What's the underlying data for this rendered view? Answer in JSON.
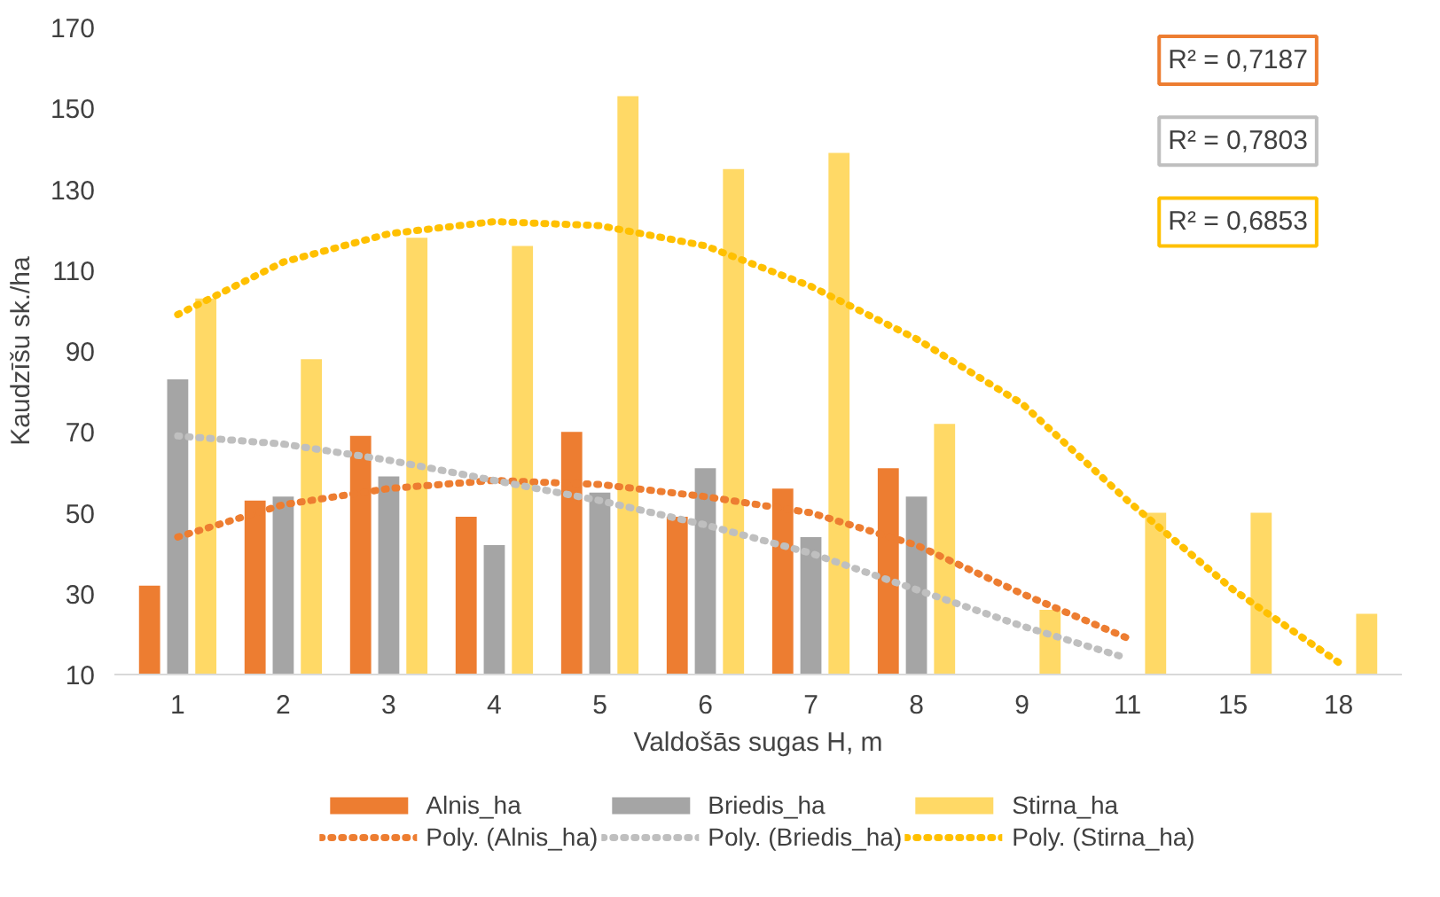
{
  "chart_data": {
    "type": "bar",
    "xlabel": "Valdošās sugas H, m",
    "ylabel": "Kaudzīšu sk./ha",
    "categories": [
      "1",
      "2",
      "3",
      "4",
      "5",
      "6",
      "7",
      "8",
      "9",
      "11",
      "15",
      "18"
    ],
    "ylim": [
      10,
      170
    ],
    "yticks": [
      10,
      30,
      50,
      70,
      90,
      110,
      130,
      150,
      170
    ],
    "grid": false,
    "legend": "bottom",
    "series": [
      {
        "name": "Alnis_ha",
        "color": "#ed7d31",
        "values": [
          32,
          53,
          69,
          49,
          70,
          49,
          56,
          61,
          10,
          10,
          10,
          10
        ]
      },
      {
        "name": "Briedis_ha",
        "color": "#a5a5a5",
        "values": [
          83,
          54,
          59,
          42,
          55,
          61,
          44,
          54,
          10,
          10,
          10,
          10
        ]
      },
      {
        "name": "Stirna_ha",
        "color": "#ffd966",
        "values": [
          103,
          88,
          118,
          116,
          153,
          135,
          139,
          72,
          26,
          50,
          50,
          25
        ]
      },
      {
        "name": "Poly. (Alnis_ha)",
        "type": "line",
        "line_style": "dotted",
        "color": "#ed7d31",
        "values": [
          44,
          52,
          56,
          58,
          57,
          54,
          50,
          42,
          30,
          19,
          null,
          null
        ]
      },
      {
        "name": "Poly. (Briedis_ha)",
        "type": "line",
        "line_style": "dotted",
        "color": "#bfbfbf",
        "values": [
          69,
          67,
          63,
          58,
          53,
          47,
          40,
          31,
          22,
          14,
          null,
          null
        ]
      },
      {
        "name": "Poly. (Stirna_ha)",
        "type": "line",
        "line_style": "dotted",
        "color": "#ffc000",
        "values": [
          99,
          112,
          119,
          122,
          121,
          116,
          106,
          93,
          77,
          53,
          31,
          13
        ]
      }
    ],
    "annotations": [
      "R² = 0,7187",
      "R² = 0,7803",
      "R² = 0,6853"
    ]
  }
}
